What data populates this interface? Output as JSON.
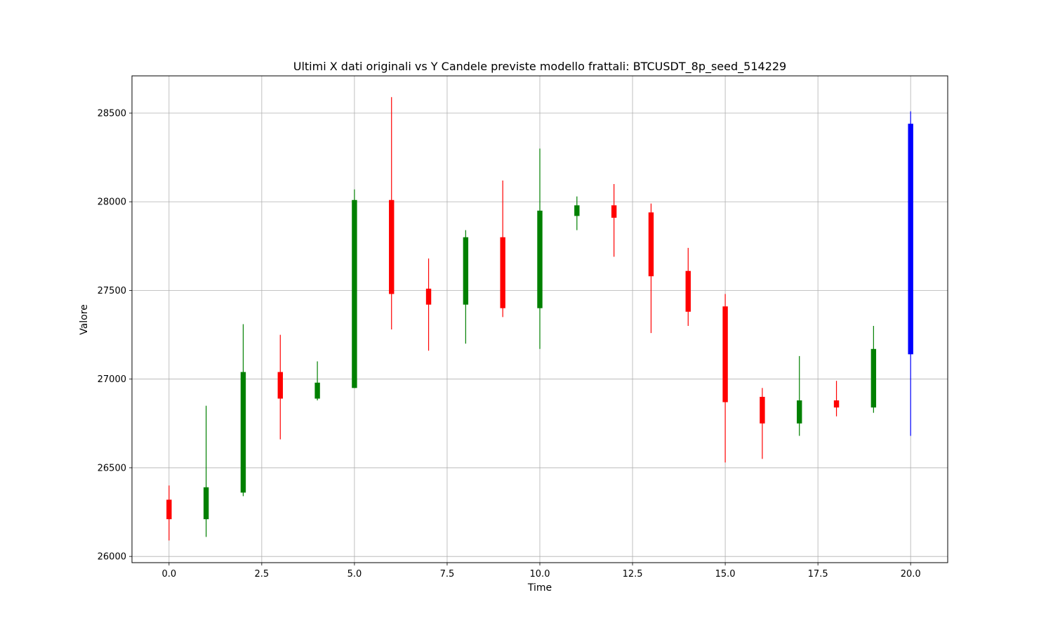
{
  "chart_data": {
    "type": "candlestick",
    "title": "Ultimi X dati originali vs Y Candele previste modello frattali: BTCUSDT_8p_seed_514229",
    "xlabel": "Time",
    "ylabel": "Valore",
    "xlim": [
      -1.0,
      21.0
    ],
    "ylim": [
      25965,
      28710
    ],
    "xticks": [
      0.0,
      2.5,
      5.0,
      7.5,
      10.0,
      12.5,
      15.0,
      17.5,
      20.0
    ],
    "xtick_labels": [
      "0.0",
      "2.5",
      "5.0",
      "7.5",
      "10.0",
      "12.5",
      "15.0",
      "17.5",
      "20.0"
    ],
    "yticks": [
      26000,
      26500,
      27000,
      27500,
      28000,
      28500
    ],
    "ytick_labels": [
      "26000",
      "26500",
      "27000",
      "27500",
      "28000",
      "28500"
    ],
    "grid": true,
    "colors": {
      "up": "#008000",
      "down": "#ff0000",
      "predicted": "#0000ff"
    },
    "candles": [
      {
        "x": 0,
        "open": 26320,
        "close": 26210,
        "high": 26400,
        "low": 26090,
        "color": "down"
      },
      {
        "x": 1,
        "open": 26210,
        "close": 26390,
        "high": 26850,
        "low": 26110,
        "color": "up"
      },
      {
        "x": 2,
        "open": 26360,
        "close": 27040,
        "high": 27310,
        "low": 26340,
        "color": "up"
      },
      {
        "x": 3,
        "open": 27040,
        "close": 26890,
        "high": 27250,
        "low": 26660,
        "color": "down"
      },
      {
        "x": 4,
        "open": 26890,
        "close": 26980,
        "high": 27100,
        "low": 26880,
        "color": "up"
      },
      {
        "x": 5,
        "open": 26950,
        "close": 28010,
        "high": 28070,
        "low": 26950,
        "color": "up"
      },
      {
        "x": 6,
        "open": 28010,
        "close": 27480,
        "high": 28590,
        "low": 27280,
        "color": "down"
      },
      {
        "x": 7,
        "open": 27510,
        "close": 27420,
        "high": 27680,
        "low": 27160,
        "color": "down"
      },
      {
        "x": 8,
        "open": 27420,
        "close": 27800,
        "high": 27840,
        "low": 27200,
        "color": "up"
      },
      {
        "x": 9,
        "open": 27800,
        "close": 27400,
        "high": 28120,
        "low": 27350,
        "color": "down"
      },
      {
        "x": 10,
        "open": 27400,
        "close": 27950,
        "high": 28300,
        "low": 27170,
        "color": "up"
      },
      {
        "x": 11,
        "open": 27920,
        "close": 27980,
        "high": 28030,
        "low": 27840,
        "color": "up"
      },
      {
        "x": 12,
        "open": 27980,
        "close": 27910,
        "high": 28100,
        "low": 27690,
        "color": "down"
      },
      {
        "x": 13,
        "open": 27940,
        "close": 27580,
        "high": 27990,
        "low": 27260,
        "color": "down"
      },
      {
        "x": 14,
        "open": 27610,
        "close": 27380,
        "high": 27740,
        "low": 27300,
        "color": "down"
      },
      {
        "x": 15,
        "open": 27410,
        "close": 26870,
        "high": 27480,
        "low": 26530,
        "color": "down"
      },
      {
        "x": 16,
        "open": 26900,
        "close": 26750,
        "high": 26950,
        "low": 26550,
        "color": "down"
      },
      {
        "x": 17,
        "open": 26750,
        "close": 26880,
        "high": 27130,
        "low": 26680,
        "color": "up"
      },
      {
        "x": 18,
        "open": 26880,
        "close": 26840,
        "high": 26990,
        "low": 26790,
        "color": "down"
      },
      {
        "x": 19,
        "open": 26840,
        "close": 27170,
        "high": 27300,
        "low": 26810,
        "color": "up"
      },
      {
        "x": 20,
        "open": 27140,
        "close": 28440,
        "high": 28510,
        "low": 26680,
        "color": "predicted"
      }
    ]
  }
}
